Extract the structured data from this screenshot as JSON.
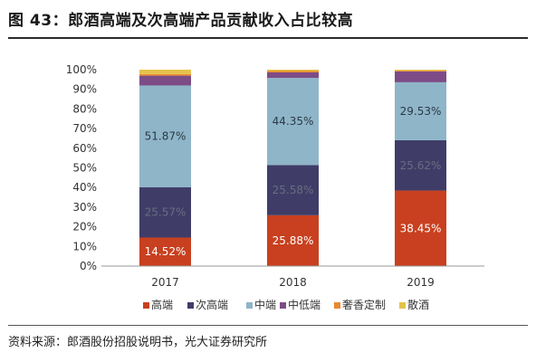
{
  "figure": {
    "title": "图 43：郎酒高端及次高端产品贡献收入占比较高",
    "source": "资料来源：郎酒股份招股说明书，光大证券研究所"
  },
  "chart_data": {
    "type": "bar",
    "stacked": true,
    "percent": true,
    "categories": [
      "2017",
      "2018",
      "2019"
    ],
    "ylim": [
      0,
      100
    ],
    "yticks": [
      "0%",
      "10%",
      "20%",
      "30%",
      "40%",
      "50%",
      "60%",
      "70%",
      "80%",
      "90%",
      "100%"
    ],
    "grid": false,
    "legend_position": "bottom",
    "series": [
      {
        "name": "高端",
        "color": "#c8401f",
        "values": [
          14.52,
          25.88,
          38.45
        ],
        "labels": [
          "14.52%",
          "25.88%",
          "38.45%"
        ],
        "label_color": "#ffffff"
      },
      {
        "name": "次高端",
        "color": "#3f3d68",
        "values": [
          25.57,
          25.58,
          25.62
        ],
        "labels": [
          "25.57%",
          "25.58%",
          "25.62%"
        ],
        "label_color": "#6b6b80"
      },
      {
        "name": "中端",
        "color": "#8fb5c9",
        "values": [
          51.87,
          44.35,
          29.53
        ],
        "labels": [
          "51.87%",
          "44.35%",
          "29.53%"
        ],
        "label_color": "#2b3a44"
      },
      {
        "name": "中低端",
        "color": "#7d4c86",
        "values": [
          5.0,
          2.8,
          5.5
        ],
        "labels": [
          "",
          "",
          ""
        ],
        "label_color": "#ffffff"
      },
      {
        "name": "奢香定制",
        "color": "#e8892f",
        "values": [
          0.8,
          0.7,
          0.4
        ],
        "labels": [
          "",
          "",
          ""
        ],
        "label_color": "#ffffff"
      },
      {
        "name": "散酒",
        "color": "#e4c24a",
        "values": [
          2.24,
          0.69,
          0.5
        ],
        "labels": [
          "",
          "",
          ""
        ],
        "label_color": "#ffffff"
      }
    ]
  }
}
